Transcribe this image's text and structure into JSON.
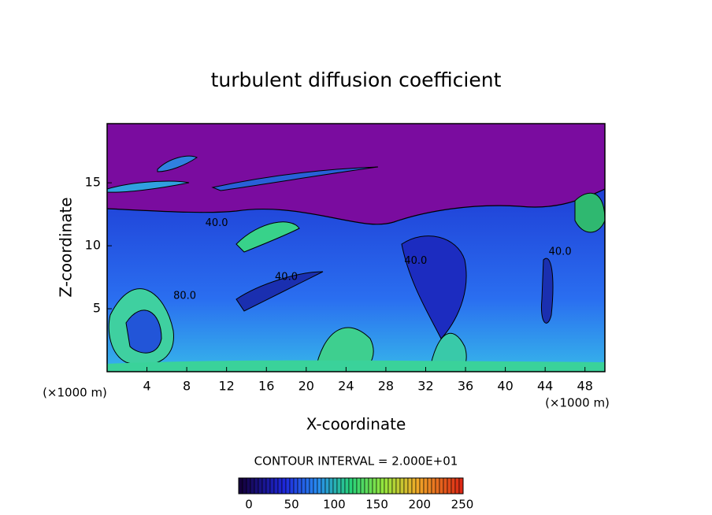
{
  "chart_data": {
    "type": "contour",
    "title": "turbulent diffusion coefficient",
    "x_label": "X-coordinate",
    "y_label": "Z-coordinate",
    "x_unit": "(×1000 m)",
    "xlim": [
      0,
      50
    ],
    "xticks": [
      4,
      8,
      12,
      16,
      20,
      24,
      28,
      32,
      36,
      40,
      44,
      48
    ],
    "ylim": [
      0,
      19.7
    ],
    "yticks": [
      5,
      10,
      15
    ],
    "contour_interval_text": "CONTOUR INTERVAL = 2.000E+01",
    "colorbar": {
      "lim": [
        0,
        250
      ],
      "ticks": [
        0,
        50,
        100,
        150,
        200,
        250
      ]
    },
    "contour_labels": [
      {
        "text": "40.0",
        "x": 11,
        "y": 11.8
      },
      {
        "text": "40.0",
        "x": 18,
        "y": 7.5
      },
      {
        "text": "40.0",
        "x": 31,
        "y": 8.8
      },
      {
        "text": "40.0",
        "x": 45.5,
        "y": 9.5
      },
      {
        "text": "80.0",
        "x": 7.8,
        "y": 6
      }
    ]
  }
}
